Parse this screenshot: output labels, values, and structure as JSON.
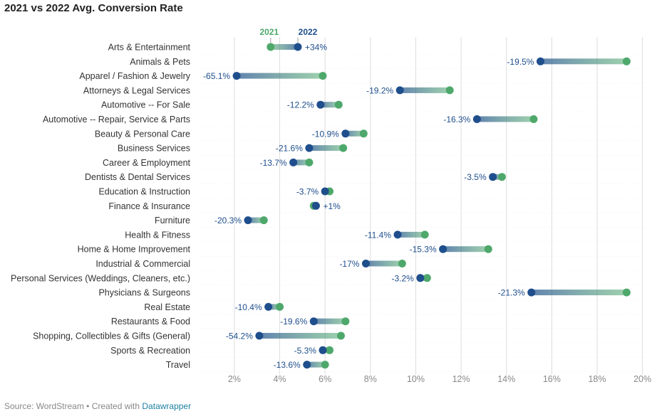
{
  "title": "2021 vs 2022 Avg. Conversion Rate",
  "footer": {
    "source": "Source: WordStream • Created with ",
    "link": "Datawrapper"
  },
  "colors": {
    "y2021": "#4ea86b",
    "y2022": "#1f4e8c",
    "label": "#1f4e8c",
    "grid": "#dddddd"
  },
  "chart_data": {
    "type": "dot-range",
    "title": "2021 vs 2022 Avg. Conversion Rate",
    "series": [
      {
        "name": "2021",
        "color": "#4ea86b"
      },
      {
        "name": "2022",
        "color": "#1f4e8c"
      }
    ],
    "legend_position": "top",
    "xlim": [
      0.4,
      20.2
    ],
    "x_ticks": [
      2,
      4,
      6,
      8,
      10,
      12,
      14,
      16,
      18,
      20
    ],
    "x_tick_labels": [
      "2%",
      "4%",
      "6%",
      "8%",
      "10%",
      "12%",
      "14%",
      "16%",
      "18%",
      "20%"
    ],
    "grid": true,
    "categories": [
      "Arts & Entertainment",
      "Animals & Pets",
      "Apparel / Fashion & Jewelry",
      "Attorneys & Legal Services",
      "Automotive -- For Sale",
      "Automotive -- Repair, Service & Parts",
      "Beauty & Personal Care",
      "Business Services",
      "Career & Employment",
      "Dentists & Dental Services",
      "Education & Instruction",
      "Finance & Insurance",
      "Furniture",
      "Health & Fitness",
      "Home & Home Improvement",
      "Industrial & Commercial",
      "Personal Services (Weddings, Cleaners, etc.)",
      "Physicians & Surgeons",
      "Real Estate",
      "Restaurants & Food",
      "Shopping, Collectibles & Gifts (General)",
      "Sports & Recreation",
      "Travel"
    ],
    "values_2021": [
      3.6,
      19.3,
      5.9,
      11.5,
      6.6,
      15.2,
      7.7,
      6.8,
      5.3,
      13.8,
      6.2,
      5.5,
      3.3,
      10.4,
      13.2,
      9.4,
      10.5,
      19.3,
      4.0,
      6.9,
      6.7,
      6.2,
      6.0
    ],
    "values_2022": [
      4.8,
      15.5,
      2.1,
      9.3,
      5.8,
      12.7,
      6.9,
      5.3,
      4.6,
      13.4,
      6.0,
      5.6,
      2.6,
      9.2,
      11.2,
      7.8,
      10.2,
      15.1,
      3.5,
      5.5,
      3.1,
      5.9,
      5.2
    ],
    "change_labels": [
      "+34%",
      "-19.5%",
      "-65.1%",
      "-19.2%",
      "-12.2%",
      "-16.3%",
      "-10.9%",
      "-21.6%",
      "-13.7%",
      "-3.5%",
      "-3.7%",
      "+1%",
      "-20.3%",
      "-11.4%",
      "-15.3%",
      "-17%",
      "-3.2%",
      "-21.3%",
      "-10.4%",
      "-19.6%",
      "-54.2%",
      "-5.3%",
      "-13.6%"
    ]
  }
}
